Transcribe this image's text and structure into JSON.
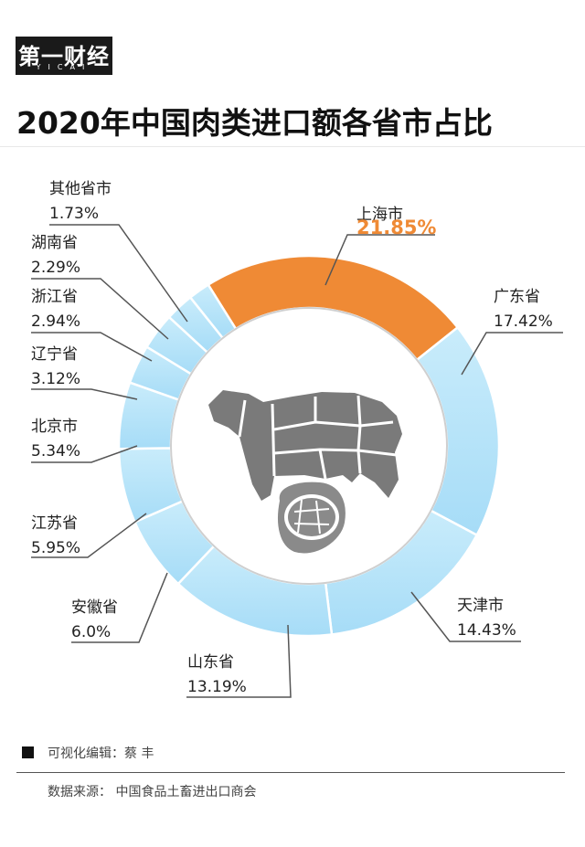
{
  "brand": {
    "name": "第一财经",
    "sub": "YICAI"
  },
  "title": "2020年中国肉类进口额各省市占比",
  "chart_data": {
    "type": "pie",
    "title": "2020年中国肉类进口额各省市占比",
    "unit": "%",
    "slices": [
      {
        "label": "上海市",
        "value": 21.85,
        "display": "21.85%",
        "color": "#ef8a35"
      },
      {
        "label": "广东省",
        "value": 17.42,
        "display": "17.42%",
        "color": "#b8e4f9"
      },
      {
        "label": "天津市",
        "value": 14.43,
        "display": "14.43%",
        "color": "#b8e4f9"
      },
      {
        "label": "山东省",
        "value": 13.19,
        "display": "13.19%",
        "color": "#b8e4f9"
      },
      {
        "label": "安徽省",
        "value": 6.0,
        "display": "6.0%",
        "color": "#b8e4f9"
      },
      {
        "label": "江苏省",
        "value": 5.95,
        "display": "5.95%",
        "color": "#b8e4f9"
      },
      {
        "label": "北京市",
        "value": 5.34,
        "display": "5.34%",
        "color": "#b8e4f9"
      },
      {
        "label": "辽宁省",
        "value": 3.12,
        "display": "3.12%",
        "color": "#b8e4f9"
      },
      {
        "label": "浙江省",
        "value": 2.94,
        "display": "2.94%",
        "color": "#b8e4f9"
      },
      {
        "label": "湖南省",
        "value": 2.29,
        "display": "2.29%",
        "color": "#b8e4f9"
      },
      {
        "label": "其他省市",
        "value": 1.73,
        "display": "1.73%",
        "color": "#b8e4f9"
      }
    ],
    "highlight_color": "#ef8a35",
    "base_color": "#b8e4f9",
    "center_icon": "meat-cuts-icon"
  },
  "footer": {
    "editor": "可视化编辑：蔡 丰",
    "source": "数据来源：  中国食品土畜进出口商会"
  }
}
